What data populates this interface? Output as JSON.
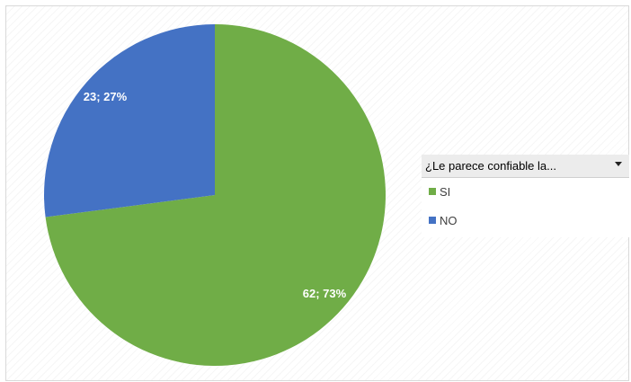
{
  "chart_data": {
    "type": "pie",
    "title": "",
    "categories": [
      "SI",
      "NO"
    ],
    "values": [
      62,
      23
    ],
    "percentages": [
      "73%",
      "27%"
    ],
    "data_labels": [
      "62; 73%",
      "23; 27%"
    ],
    "colors": [
      "#70ad47",
      "#4472c4"
    ],
    "legend_placement": "right",
    "legend_title": "¿Le parece confiable la...",
    "start_angle_deg": 0,
    "direction": "clockwise"
  }
}
